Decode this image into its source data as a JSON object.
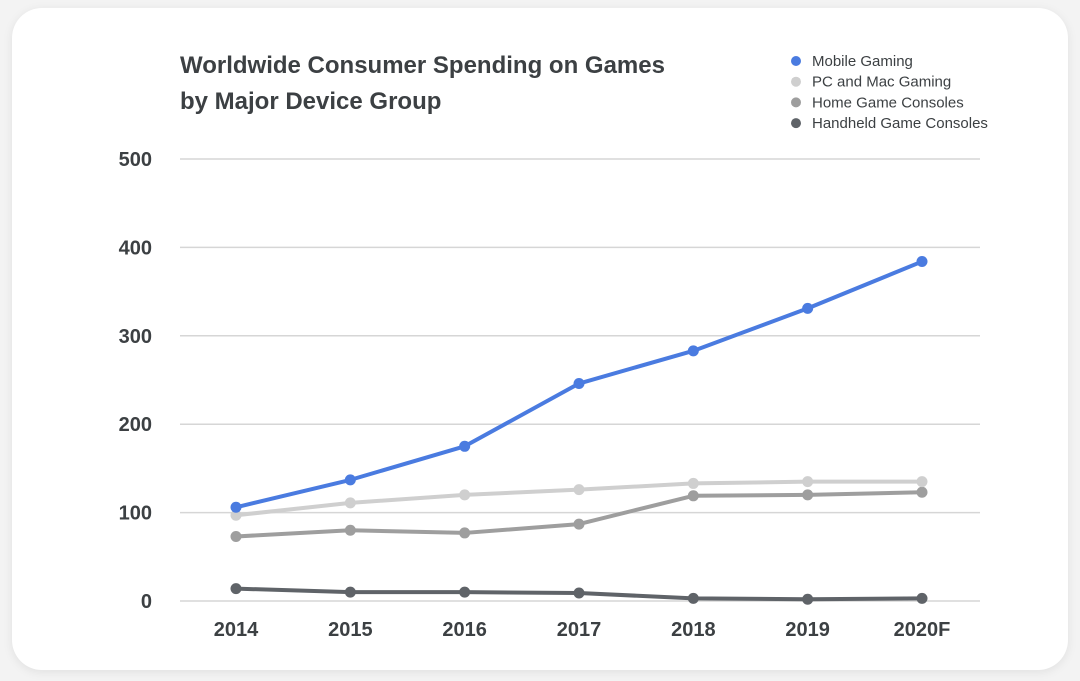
{
  "chart_data": {
    "type": "line",
    "title": "Worldwide Consumer Spending on Games",
    "subtitle": "by Major Device Group",
    "categories": [
      "2014",
      "2015",
      "2016",
      "2017",
      "2018",
      "2019",
      "2020F"
    ],
    "ylim": [
      0,
      500
    ],
    "yticks": [
      "500",
      "400",
      "300",
      "200",
      "100",
      "0"
    ],
    "grid": true,
    "legend_position": "top-right",
    "series": [
      {
        "name": "Mobile Gaming",
        "color": "#4a7be0",
        "values": [
          106,
          137,
          175,
          246,
          283,
          331,
          384
        ]
      },
      {
        "name": "PC and Mac Gaming",
        "color": "#cfcfcf",
        "values": [
          97,
          111,
          120,
          126,
          133,
          135,
          135
        ]
      },
      {
        "name": "Home Game Consoles",
        "color": "#9e9e9e",
        "values": [
          73,
          80,
          77,
          87,
          119,
          120,
          123
        ]
      },
      {
        "name": "Handheld Game Consoles",
        "color": "#5f6368",
        "values": [
          14,
          10,
          10,
          9,
          3,
          2,
          3
        ]
      }
    ]
  }
}
